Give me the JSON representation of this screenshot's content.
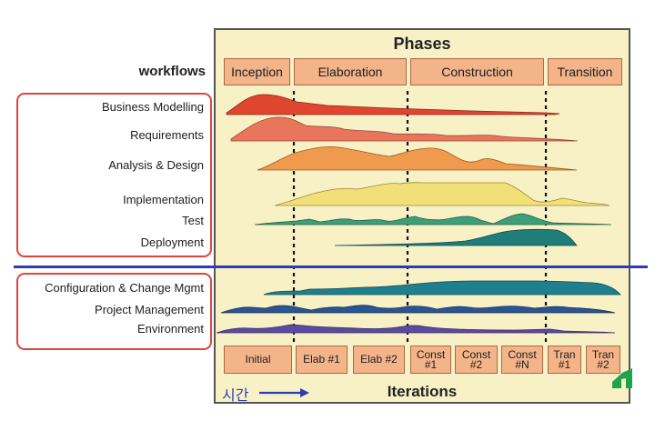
{
  "title": "Phases",
  "workflows_heading": "workflows",
  "phases": [
    "Inception",
    "Elaboration",
    "Construction",
    "Transition"
  ],
  "engineering_workflows": [
    "Business Modelling",
    "Requirements",
    "Analysis & Design",
    "Implementation",
    "Test",
    "Deployment"
  ],
  "supporting_workflows": [
    "Configuration & Change Mgmt",
    "Project Management",
    "Environment"
  ],
  "iterations": [
    "Initial",
    "Elab #1",
    "Elab #2",
    "Const\n#1",
    "Const\n#2",
    "Const\n#N",
    "Tran\n#1",
    "Tran\n#2"
  ],
  "iterations_label": "Iterations",
  "time_label": "시간",
  "colors": {
    "panel": "#f8f1c6",
    "box": "#f4b48a",
    "highlight_frame": "#e0443c",
    "divider": "#2e3bb3",
    "time_arrow": "#2e3bb3",
    "business_modelling": "#e0452f",
    "requirements": "#e8765c",
    "analysis_design": "#ef9a4c",
    "implementation": "#f1df78",
    "test": "#3f9e7a",
    "deployment": "#1f7e7a",
    "configuration": "#1f7f8e",
    "project_management": "#2a5590",
    "environment": "#5b4aa0"
  },
  "corner_icon": "green-shape-icon"
}
